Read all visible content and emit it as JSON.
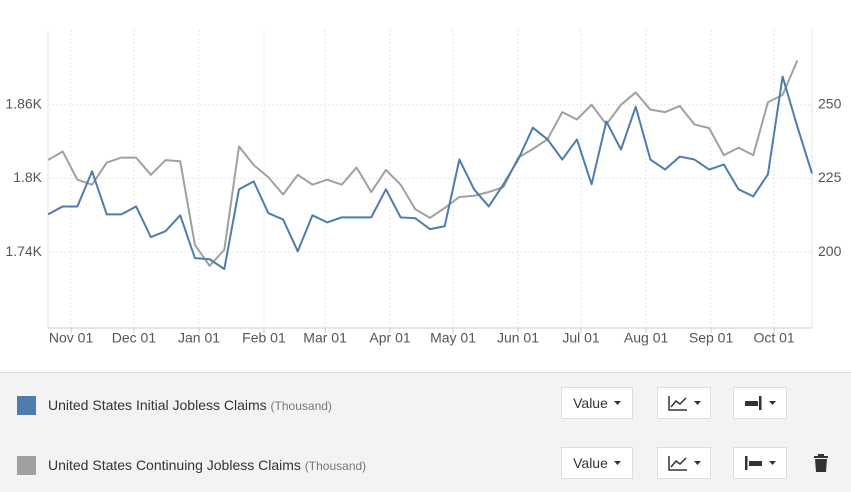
{
  "chart_data": {
    "type": "line",
    "categories": [
      null,
      null,
      null,
      null,
      null,
      null,
      null,
      null,
      null,
      null,
      null,
      null,
      null,
      null,
      null,
      null,
      null,
      null,
      null,
      null,
      null,
      null,
      null,
      null,
      null,
      null,
      null,
      null,
      null,
      null,
      null,
      null,
      null,
      null,
      null,
      null,
      null,
      null,
      null,
      null,
      null,
      null,
      null,
      null,
      null,
      null,
      null,
      null,
      null,
      null,
      null,
      null,
      null
    ],
    "xlim": [
      0,
      52
    ],
    "xticks": [
      {
        "value": 1.57,
        "label": "Nov 01"
      },
      {
        "value": 5.85,
        "label": "Dec 01"
      },
      {
        "value": 10.28,
        "label": "Jan 01"
      },
      {
        "value": 14.7,
        "label": "Feb 01"
      },
      {
        "value": 18.86,
        "label": "Mar 01"
      },
      {
        "value": 23.28,
        "label": "Apr 01"
      },
      {
        "value": 27.57,
        "label": "May 01"
      },
      {
        "value": 31.99,
        "label": "Jun 01"
      },
      {
        "value": 36.28,
        "label": "Jul 01"
      },
      {
        "value": 40.71,
        "label": "Aug 01"
      },
      {
        "value": 45.13,
        "label": "Sep 01"
      },
      {
        "value": 49.42,
        "label": "Oct 01"
      }
    ],
    "ylim": [
      1678.4,
      1920.8
    ],
    "yticks": [
      {
        "value": 1740,
        "label": "1.74K"
      },
      {
        "value": 1800,
        "label": "1.8K"
      },
      {
        "value": 1860,
        "label": "1.86K"
      }
    ],
    "y2lim": [
      174.3,
      275.3
    ],
    "y2ticks": [
      200,
      225,
      250
    ],
    "grid": true,
    "series": [
      {
        "name": "United States Initial Jobless Claims",
        "unit": "(Thousand)",
        "color": "#4f7cac",
        "axis": "y2",
        "display": "Value",
        "values": [
          212.8,
          215.5,
          215.5,
          227.4,
          212.8,
          212.8,
          215.5,
          205.1,
          207.1,
          212.5,
          198.0,
          197.6,
          194.3,
          221.3,
          224.0,
          213.2,
          211.1,
          200.3,
          212.5,
          210.1,
          211.8,
          211.8,
          211.8,
          221.3,
          211.8,
          211.5,
          207.8,
          208.8,
          231.4,
          221.3,
          215.5,
          223.0,
          231.4,
          242.2,
          238.2,
          231.4,
          238.2,
          223.0,
          244.3,
          234.8,
          249.3,
          231.4,
          228.0,
          232.4,
          231.4,
          228.0,
          229.7,
          221.3,
          218.9,
          226.4,
          259.5,
          242.6,
          226.7
        ]
      },
      {
        "name": "United States Continuing Jobless Claims",
        "unit": "(Thousand)",
        "color": "#a0a0a0",
        "axis": "y",
        "display": "Value",
        "values": [
          1815,
          1822,
          1799,
          1795,
          1813,
          1817,
          1817,
          1803,
          1815,
          1814,
          1746,
          1729,
          1742,
          1826,
          1811,
          1801,
          1787,
          1803,
          1795,
          1799,
          1795,
          1809,
          1789,
          1807,
          1795,
          1775,
          1768,
          1776,
          1785,
          1786,
          1789,
          1793,
          1817,
          1824,
          1832,
          1854,
          1848,
          1860,
          1844,
          1860,
          1870,
          1856,
          1854,
          1859,
          1844,
          1841,
          1819,
          1825,
          1819,
          1862,
          1868,
          1896,
          null
        ]
      }
    ]
  }
}
